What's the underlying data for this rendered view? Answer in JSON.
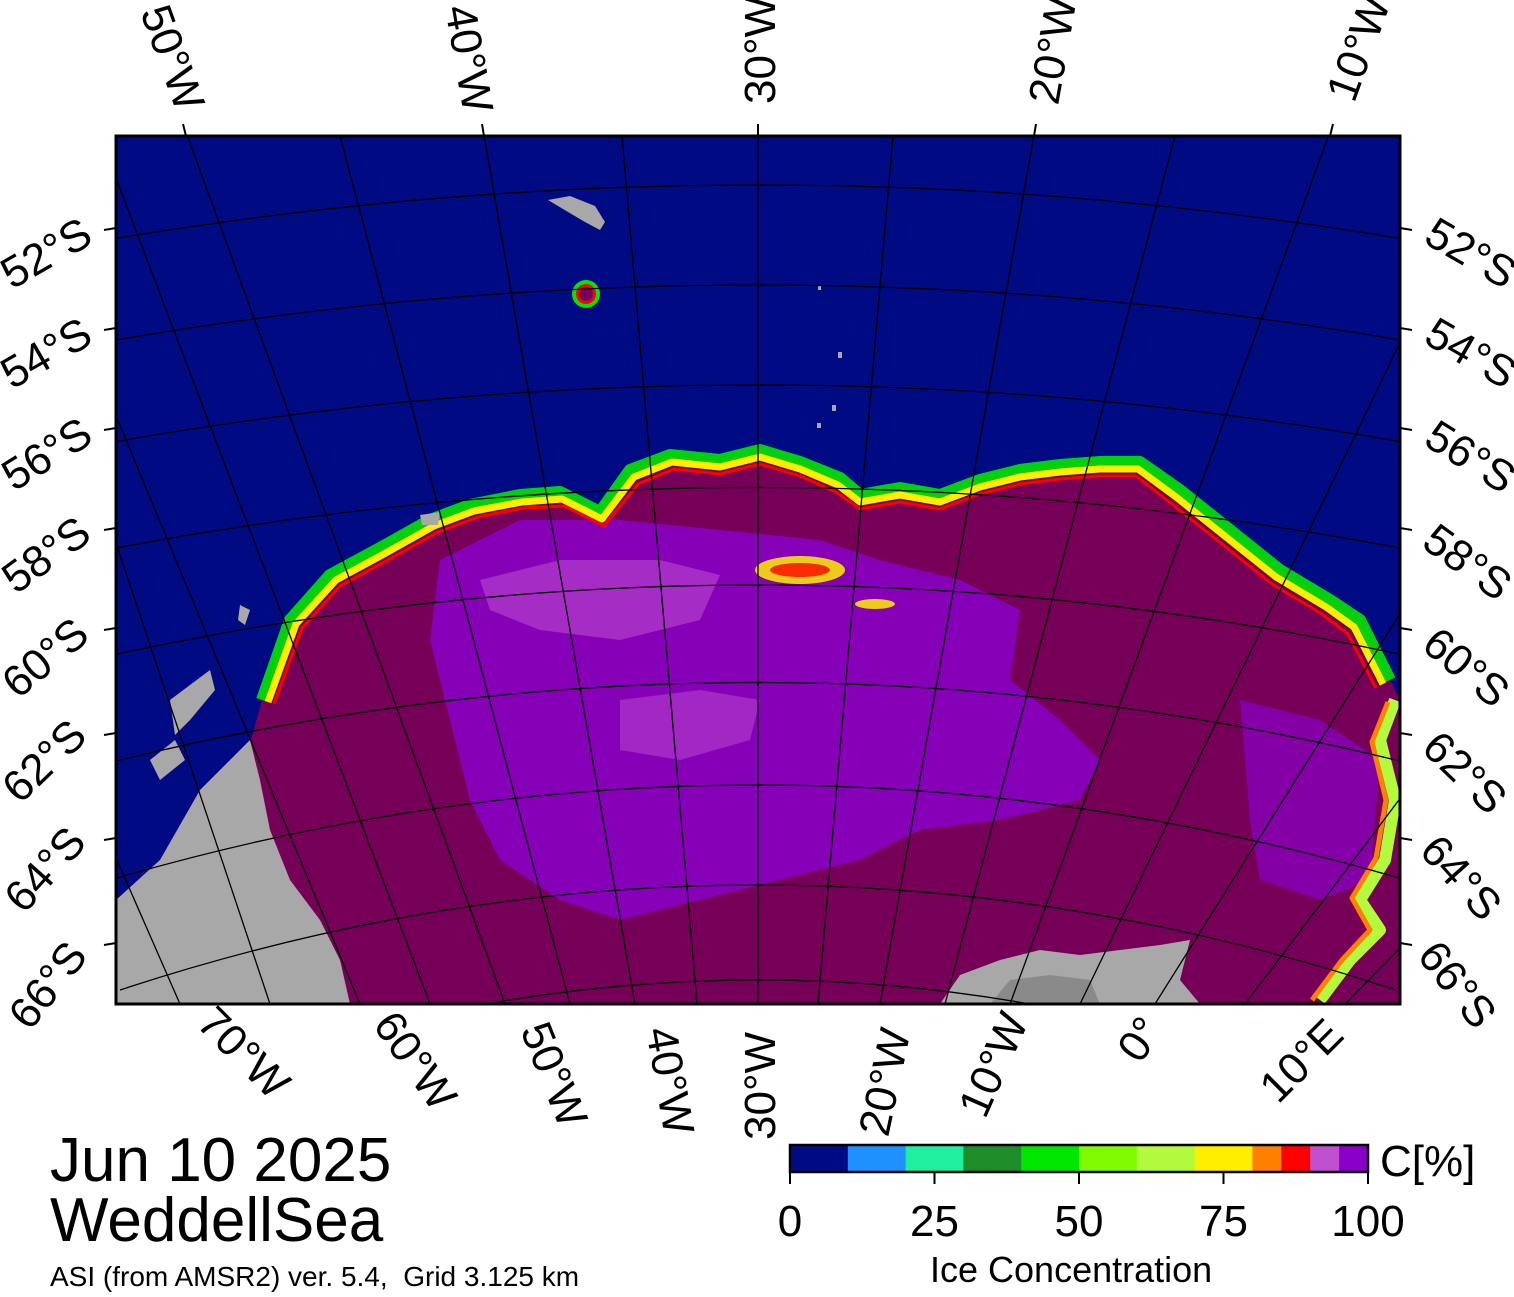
{
  "date": "Jun 10 2025",
  "region": "WeddellSea",
  "source_note": "ASI (from AMSR2) ver. 5.4,  Grid 3.125 km",
  "colors": {
    "open_water": "#000a82",
    "land": "#a8a8a8",
    "land_dark": "#8a8a8a",
    "ice_high": "#760058",
    "ice_violet": "#8a00c8"
  },
  "top_labels": [
    "50°W",
    "40°W",
    "30°W",
    "20°W",
    "10°W"
  ],
  "bottom_labels": [
    "70°W",
    "60°W",
    "50°W",
    "40°W",
    "30°W",
    "20°W",
    "10°W",
    "0°",
    "10°E"
  ],
  "lat_labels": [
    "52°S",
    "54°S",
    "56°S",
    "58°S",
    "60°S",
    "62°S",
    "64°S",
    "66°S"
  ],
  "colorbar": {
    "title": "Ice Concentration",
    "unit": "C[%]",
    "colors": [
      "#000a82",
      "#1e90ff",
      "#1ef0a0",
      "#1e8c28",
      "#00e600",
      "#7ffa00",
      "#b4fa3c",
      "#ffee00",
      "#ff8000",
      "#ff0000",
      "#c050d0",
      "#8a00c8"
    ],
    "ticks": [
      "0",
      "25",
      "50",
      "75",
      "100"
    ]
  }
}
